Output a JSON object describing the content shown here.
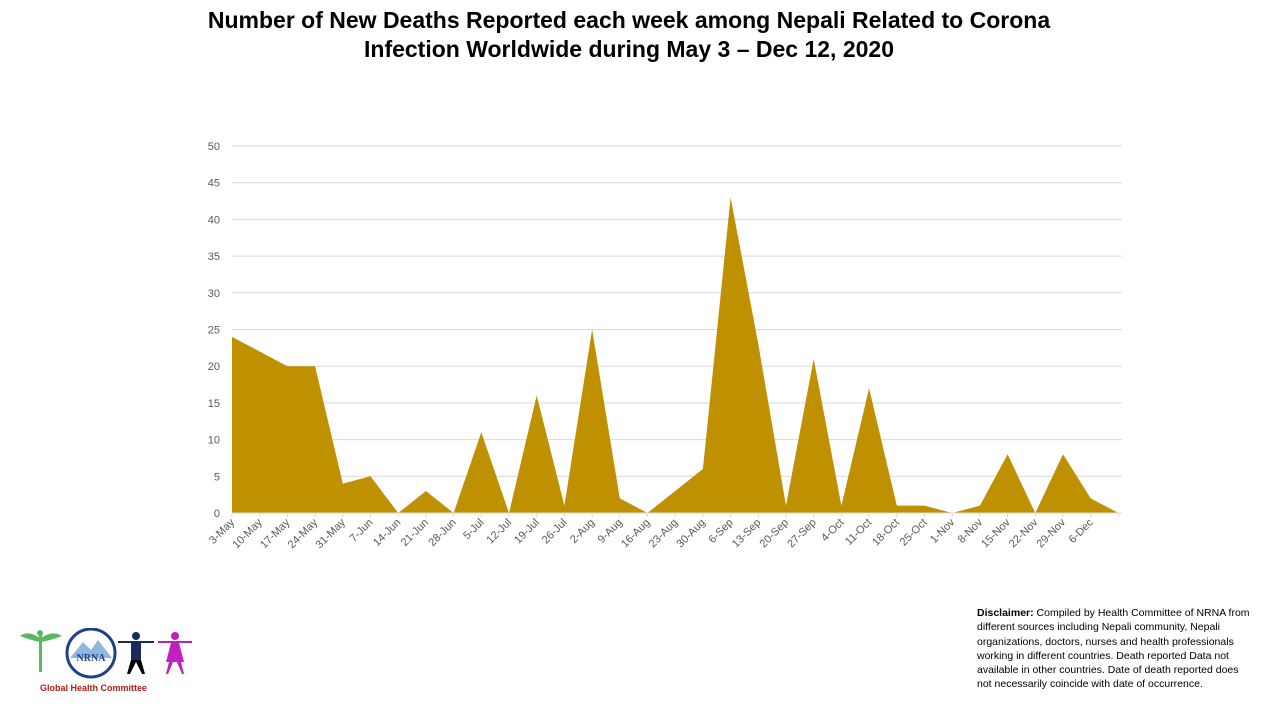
{
  "title_line1": "Number of New Deaths Reported each week among Nepali Related to Corona",
  "title_line2": "Infection Worldwide during May 3 – Dec 12, 2020",
  "disclaimer": {
    "label": "Disclaimer:",
    "text": " Compiled by Health Committee of NRNA from different sources including Nepali community, Nepali organizations, doctors, nurses and health professionals working in different countries. Death reported Data not available in other countries. Date of death reported does not necessarily coincide with date of occurrence."
  },
  "logo": {
    "name": "NRNA",
    "caption": "Global Health Committee"
  },
  "colors": {
    "fill": "#BF9000",
    "grid": "#D9D9D9",
    "axis_text": "#595959"
  },
  "chart_data": {
    "type": "area",
    "title": "Number of New Deaths Reported each week among Nepali Related to Corona Infection Worldwide during May 3 – Dec 12, 2020",
    "xlabel": "",
    "ylabel": "",
    "ylim": [
      0,
      50
    ],
    "yticks": [
      0,
      5,
      10,
      15,
      20,
      25,
      30,
      35,
      40,
      45,
      50
    ],
    "grid": true,
    "categories": [
      "3-May",
      "10-May",
      "17-May",
      "24-May",
      "31-May",
      "7-Jun",
      "14-Jun",
      "21-Jun",
      "28-Jun",
      "5-Jul",
      "12-Jul",
      "19-Jul",
      "26-Jul",
      "2-Aug",
      "9-Aug",
      "16-Aug",
      "23-Aug",
      "30-Aug",
      "6-Sep",
      "13-Sep",
      "20-Sep",
      "27-Sep",
      "4-Oct",
      "11-Oct",
      "18-Oct",
      "25-Oct",
      "1-Nov",
      "8-Nov",
      "15-Nov",
      "22-Nov",
      "29-Nov",
      "6-Dec",
      ""
    ],
    "values": [
      24,
      22,
      20,
      20,
      4,
      5,
      0,
      3,
      0,
      11,
      0,
      16,
      1,
      25,
      2,
      0,
      3,
      6,
      43,
      23,
      1,
      21,
      1,
      17,
      1,
      1,
      0,
      1,
      8,
      0,
      8,
      2,
      0
    ]
  }
}
